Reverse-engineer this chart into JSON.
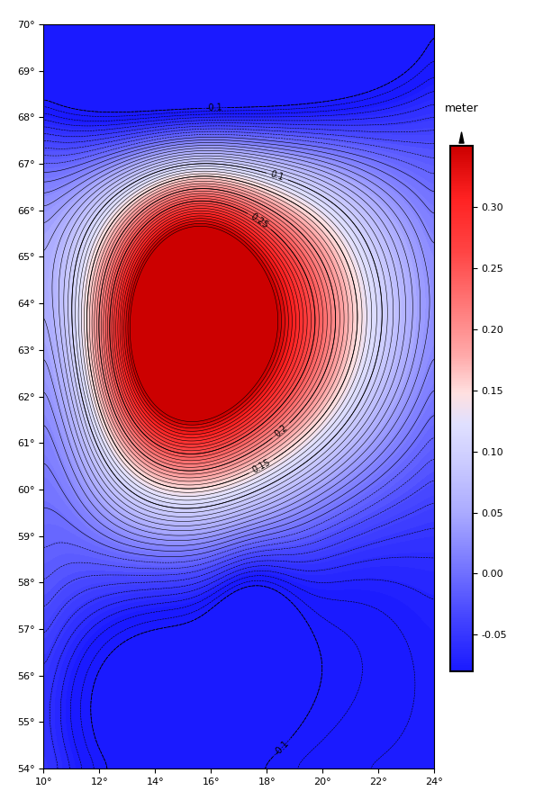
{
  "lon_min": 10,
  "lon_max": 24,
  "lat_min": 54,
  "lat_max": 70,
  "colorbar_min": -0.08,
  "colorbar_max": 0.35,
  "colorbar_ticks": [
    -0.05,
    0.0,
    0.05,
    0.1,
    0.15,
    0.2,
    0.25,
    0.3
  ],
  "colorbar_label": "meter",
  "contour_interval": 0.01,
  "contour_levels_labeled": [
    0.1,
    0.15,
    0.2,
    0.25
  ],
  "lon_ticks": [
    10,
    12,
    14,
    16,
    18,
    20,
    22,
    24
  ],
  "lat_ticks": [
    54,
    55,
    56,
    57,
    58,
    59,
    60,
    61,
    62,
    63,
    64,
    65,
    66,
    67,
    68,
    69,
    70
  ],
  "background_color": "#ffffff",
  "fig_width": 6.03,
  "fig_height": 8.99
}
